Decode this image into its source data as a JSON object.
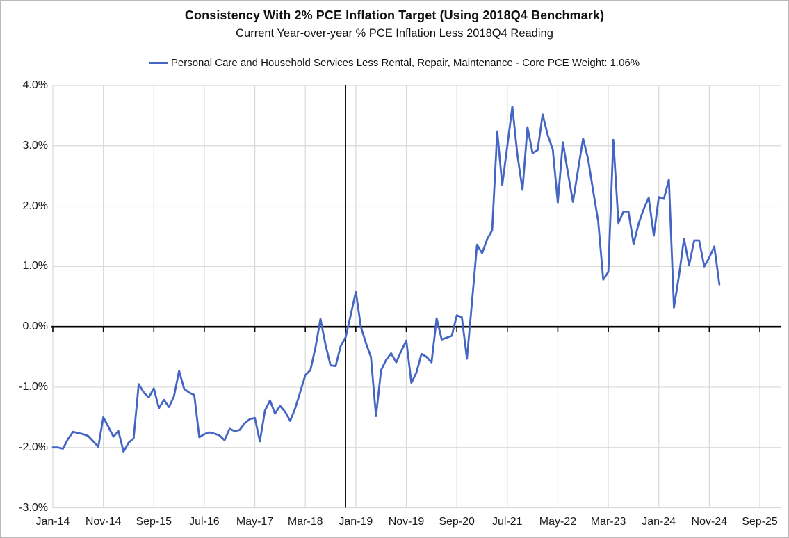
{
  "chart": {
    "title": "Consistency With 2% PCE Inflation Target (Using 2018Q4 Benchmark)",
    "subtitle": "Current Year-over-year % PCE Inflation Less 2018Q4 Reading",
    "legend": {
      "label": "Personal Care and Household Services Less Rental, Repair, Maintenance  - Core PCE Weight: 1.06%",
      "series_color": "#4565C4"
    }
  },
  "chart_data": {
    "type": "line",
    "title": "Consistency With 2% PCE Inflation Target (Using 2018Q4 Benchmark)",
    "subtitle": "Current Year-over-year % PCE Inflation Less 2018Q4 Reading",
    "xlabel": "",
    "ylabel": "",
    "ylim": [
      -3.0,
      4.0
    ],
    "y_tick_labels": [
      "4.0%",
      "3.0%",
      "2.0%",
      "1.0%",
      "0.0%",
      "-1.0%",
      "-2.0%",
      "-3.0%"
    ],
    "y_tick_values": [
      4,
      3,
      2,
      1,
      0,
      -1,
      -2,
      -3
    ],
    "x_tick_labels": [
      "Jan-14",
      "Nov-14",
      "Sep-15",
      "Jul-16",
      "May-17",
      "Mar-18",
      "Jan-19",
      "Nov-19",
      "Sep-20",
      "Jul-21",
      "May-22",
      "Mar-23",
      "Jan-24",
      "Nov-24",
      "Sep-25"
    ],
    "x_tick_interval_months": 10,
    "grid": true,
    "legend_position": "top",
    "zero_axis": true,
    "benchmark_vline": {
      "month": "Nov-18",
      "month_index": 58
    },
    "series": [
      {
        "name": "Personal Care and Household Services Less Rental, Repair, Maintenance  - Core PCE Weight: 1.06%",
        "color": "#4565C4",
        "start_month": "Jan-14",
        "end_month": "Jan-25",
        "frequency": "monthly",
        "values": [
          -2.0,
          -2.0,
          -2.02,
          -1.86,
          -1.74,
          -1.76,
          -1.78,
          -1.81,
          -1.9,
          -1.99,
          -1.5,
          -1.66,
          -1.82,
          -1.73,
          -2.07,
          -1.92,
          -1.85,
          -0.95,
          -1.09,
          -1.17,
          -1.02,
          -1.35,
          -1.21,
          -1.33,
          -1.15,
          -0.73,
          -1.03,
          -1.09,
          -1.13,
          -1.83,
          -1.78,
          -1.75,
          -1.77,
          -1.8,
          -1.88,
          -1.69,
          -1.73,
          -1.71,
          -1.6,
          -1.53,
          -1.51,
          -1.9,
          -1.39,
          -1.22,
          -1.44,
          -1.31,
          -1.41,
          -1.56,
          -1.35,
          -1.08,
          -0.8,
          -0.72,
          -0.35,
          0.13,
          -0.3,
          -0.64,
          -0.65,
          -0.32,
          -0.17,
          0.2,
          0.58,
          0.0,
          -0.27,
          -0.5,
          -1.48,
          -0.72,
          -0.55,
          -0.44,
          -0.59,
          -0.4,
          -0.23,
          -0.93,
          -0.76,
          -0.45,
          -0.5,
          -0.59,
          0.14,
          -0.21,
          -0.18,
          -0.15,
          0.19,
          0.16,
          -0.53,
          0.4,
          1.36,
          1.22,
          1.45,
          1.6,
          3.24,
          2.35,
          3.0,
          3.65,
          2.85,
          2.27,
          3.31,
          2.88,
          2.93,
          3.52,
          3.18,
          2.94,
          2.06,
          3.06,
          2.55,
          2.07,
          2.6,
          3.12,
          2.78,
          2.25,
          1.75,
          0.78,
          0.91,
          3.1,
          1.72,
          1.91,
          1.91,
          1.37,
          1.71,
          1.95,
          2.14,
          1.51,
          2.15,
          2.12,
          2.44,
          0.32,
          0.85,
          1.46,
          1.02,
          1.43,
          1.43,
          1.0,
          1.15,
          1.33,
          0.7
        ]
      }
    ]
  }
}
